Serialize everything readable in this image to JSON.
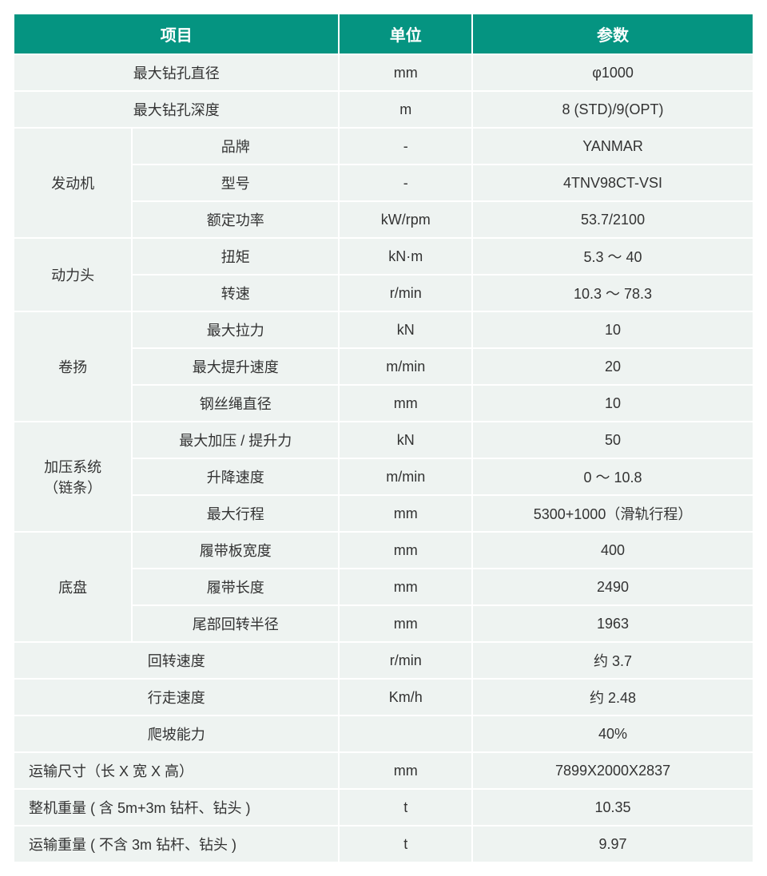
{
  "colors": {
    "header_bg": "#059481",
    "header_text": "#ffffff",
    "cell_bg": "#eef3f1",
    "cell_text": "#333333",
    "border": "#ffffff"
  },
  "table": {
    "type": "table",
    "columns": [
      "项目",
      "单位",
      "参数"
    ],
    "header": {
      "item": "项目",
      "unit": "单位",
      "param": "参数"
    },
    "rows": [
      {
        "group": null,
        "item": "最大钻孔直径",
        "unit": "mm",
        "param": "φ1000",
        "span": 2
      },
      {
        "group": null,
        "item": "最大钻孔深度",
        "unit": "m",
        "param": "8 (STD)/9(OPT)",
        "span": 2
      },
      {
        "group": "发动机",
        "item": "品牌",
        "unit": "-",
        "param": "YANMAR"
      },
      {
        "group": null,
        "item": "型号",
        "unit": "-",
        "param": "4TNV98CT-VSI"
      },
      {
        "group": null,
        "item": "额定功率",
        "unit": "kW/rpm",
        "param": "53.7/2100"
      },
      {
        "group": "动力头",
        "item": "扭矩",
        "unit": "kN·m",
        "param": "5.3 ～ 40"
      },
      {
        "group": null,
        "item": "转速",
        "unit": "r/min",
        "param": "10.3 ～ 78.3"
      },
      {
        "group": "卷扬",
        "item": "最大拉力",
        "unit": "kN",
        "param": "10"
      },
      {
        "group": null,
        "item": "最大提升速度",
        "unit": "m/min",
        "param": "20"
      },
      {
        "group": null,
        "item": "钢丝绳直径",
        "unit": "mm",
        "param": "10"
      },
      {
        "group": "加压系统\n（链条）",
        "item": "最大加压 / 提升力",
        "unit": "kN",
        "param": "50"
      },
      {
        "group": null,
        "item": "升降速度",
        "unit": "m/min",
        "param": "0 ～ 10.8"
      },
      {
        "group": null,
        "item": "最大行程",
        "unit": "mm",
        "param": "5300+1000（滑轨行程）"
      },
      {
        "group": "底盘",
        "item": "履带板宽度",
        "unit": "mm",
        "param": "400"
      },
      {
        "group": null,
        "item": "履带长度",
        "unit": "mm",
        "param": "2490"
      },
      {
        "group": null,
        "item": "尾部回转半径",
        "unit": "mm",
        "param": "1963"
      },
      {
        "group": null,
        "item": "回转速度",
        "unit": "r/min",
        "param": "约 3.7",
        "span": 2
      },
      {
        "group": null,
        "item": "行走速度",
        "unit": "Km/h",
        "param": "约 2.48",
        "span": 2
      },
      {
        "group": null,
        "item": "爬坡能力",
        "unit": "",
        "param": "40%",
        "span": 2
      },
      {
        "group": null,
        "item": "运输尺寸（长 X 宽 X 高）",
        "unit": "mm",
        "param": "7899X2000X2837",
        "span": 2,
        "align": "left"
      },
      {
        "group": null,
        "item": "整机重量 ( 含 5m+3m 钻杆、钻头 )",
        "unit": "t",
        "param": "10.35",
        "span": 2,
        "align": "left"
      },
      {
        "group": null,
        "item": "运输重量 ( 不含 3m 钻杆、钻头 )",
        "unit": "t",
        "param": "9.97",
        "span": 2,
        "align": "left"
      }
    ],
    "group_spans": {
      "发动机": 3,
      "动力头": 2,
      "卷扬": 3,
      "加压系统\n（链条）": 3,
      "底盘": 3
    }
  }
}
